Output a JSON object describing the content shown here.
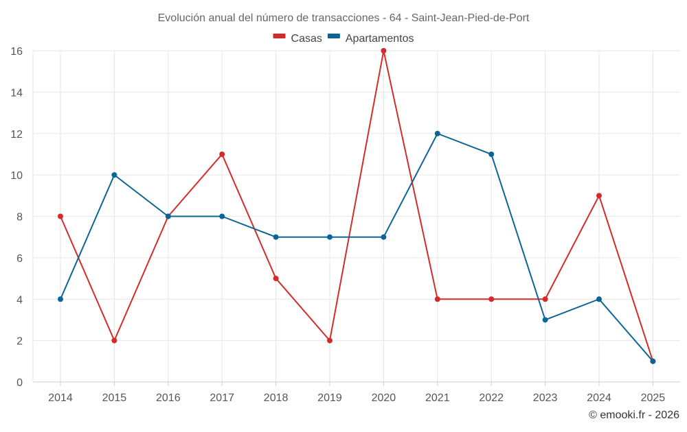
{
  "chart_data": {
    "type": "line",
    "title": "Evolución anual del número de transacciones - 64 - Saint-Jean-Pied-de-Port",
    "xlabel": "",
    "ylabel": "",
    "categories": [
      "2014",
      "2015",
      "2016",
      "2017",
      "2018",
      "2019",
      "2020",
      "2021",
      "2022",
      "2023",
      "2024",
      "2025"
    ],
    "series": [
      {
        "name": "Casas",
        "color": "#d42a2a",
        "values": [
          8,
          2,
          8,
          11,
          5,
          2,
          16,
          4,
          4,
          4,
          9,
          1
        ]
      },
      {
        "name": "Apartamentos",
        "color": "#0a6496",
        "values": [
          4,
          10,
          8,
          8,
          7,
          7,
          7,
          12,
          11,
          3,
          4,
          1
        ]
      }
    ],
    "ylim": [
      0,
      16
    ],
    "yticks": [
      0,
      2,
      4,
      6,
      8,
      10,
      12,
      14,
      16
    ],
    "grid": true,
    "legend": "top-center"
  },
  "credit": "© emooki.fr - 2026"
}
